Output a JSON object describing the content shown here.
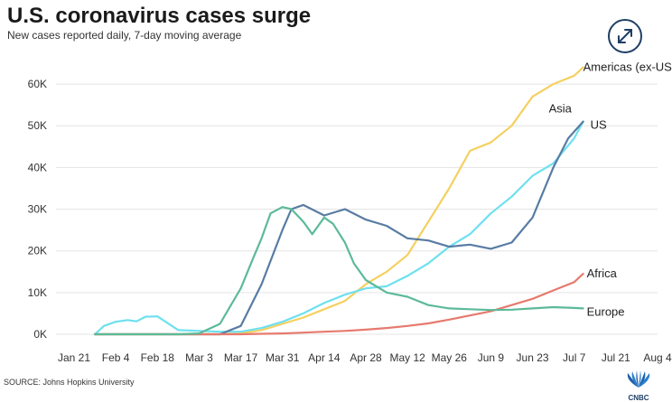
{
  "header": {
    "title": "U.S. coronavirus cases surge",
    "subtitle": "New cases reported daily, 7-day moving average"
  },
  "footer": {
    "source": "SOURCE: Johns Hopkins University",
    "logo_text": "CNBC"
  },
  "icons": {
    "expand": "expand-arrows-icon",
    "logo": "cnbc-peacock-icon"
  },
  "chart_data": {
    "type": "line",
    "title": "U.S. coronavirus cases surge",
    "subtitle": "New cases reported daily, 7-day moving average",
    "xlabel": "",
    "ylabel": "",
    "x_tick_labels": [
      "Jan 21",
      "Feb 4",
      "Feb 18",
      "Mar 3",
      "Mar 17",
      "Mar 31",
      "Apr 14",
      "Apr 28",
      "May 12",
      "May 26",
      "Jun 9",
      "Jun 23",
      "Jul 7",
      "Jul 21",
      "Aug 4"
    ],
    "y_tick_labels": [
      "0K",
      "10K",
      "20K",
      "30K",
      "40K",
      "50K",
      "60K"
    ],
    "xlim": [
      0,
      196
    ],
    "ylim": [
      0,
      65000
    ],
    "grid": true,
    "legend": "direct-labels-at-line-ends",
    "series": [
      {
        "name": "Americas (ex-US)",
        "color": "#f5d060",
        "x": [
          7,
          49,
          56,
          63,
          70,
          77,
          84,
          91,
          98,
          105,
          112,
          119,
          126,
          133,
          140,
          147,
          154,
          161,
          168,
          171
        ],
        "y": [
          0,
          0,
          200,
          1000,
          2500,
          4000,
          6000,
          8000,
          12000,
          15000,
          19000,
          27000,
          35000,
          44000,
          46000,
          50000,
          57000,
          60000,
          62000,
          64000
        ]
      },
      {
        "name": "Asia",
        "color": "#6ee0f0",
        "x": [
          7,
          10,
          14,
          18,
          21,
          24,
          28,
          35,
          42,
          49,
          56,
          63,
          70,
          77,
          84,
          91,
          98,
          105,
          112,
          119,
          126,
          133,
          140,
          147,
          154,
          161,
          168,
          171
        ],
        "y": [
          0,
          2000,
          3000,
          3400,
          3100,
          4200,
          4300,
          1000,
          800,
          600,
          600,
          1500,
          3000,
          5000,
          7500,
          9500,
          11000,
          11500,
          14000,
          17000,
          21000,
          24000,
          29000,
          33000,
          38000,
          41000,
          47000,
          51000
        ]
      },
      {
        "name": "US",
        "color": "#587ca3",
        "x": [
          7,
          49,
          56,
          63,
          70,
          73,
          77,
          84,
          91,
          98,
          105,
          112,
          119,
          126,
          133,
          140,
          147,
          154,
          161,
          166,
          171
        ],
        "y": [
          0,
          0,
          2000,
          12000,
          25000,
          30000,
          31000,
          28500,
          30000,
          27500,
          26000,
          23000,
          22500,
          21000,
          21500,
          20500,
          22000,
          28000,
          40000,
          47000,
          51000
        ]
      },
      {
        "name": "Africa",
        "color": "#e67a6e",
        "x": [
          7,
          49,
          56,
          63,
          70,
          77,
          84,
          91,
          98,
          105,
          112,
          119,
          126,
          133,
          140,
          147,
          154,
          161,
          168,
          171
        ],
        "y": [
          0,
          0,
          0,
          100,
          200,
          400,
          600,
          800,
          1100,
          1500,
          2000,
          2600,
          3500,
          4500,
          5500,
          7000,
          8500,
          10500,
          12500,
          14500
        ]
      },
      {
        "name": "Europe",
        "color": "#5cba98",
        "x": [
          7,
          35,
          42,
          49,
          56,
          60,
          63,
          66,
          70,
          73,
          77,
          80,
          84,
          87,
          91,
          94,
          98,
          105,
          112,
          119,
          126,
          133,
          140,
          147,
          154,
          161,
          168,
          171
        ],
        "y": [
          0,
          0,
          200,
          2500,
          11000,
          18000,
          23000,
          29000,
          30500,
          30000,
          27000,
          24000,
          28000,
          26500,
          22000,
          17000,
          13000,
          10000,
          9000,
          7000,
          6200,
          6000,
          5800,
          5900,
          6200,
          6500,
          6300,
          6200
        ]
      }
    ]
  }
}
